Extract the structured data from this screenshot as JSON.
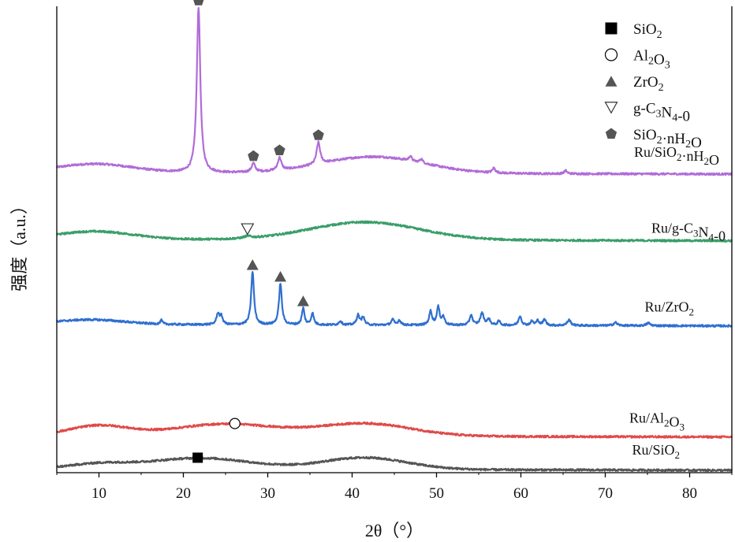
{
  "chart_data": {
    "type": "line",
    "title": "",
    "xlabel": "2θ（°）",
    "ylabel": "强度（a.u.）",
    "xlim": [
      5,
      85
    ],
    "xticks": [
      10,
      20,
      30,
      40,
      50,
      60,
      70,
      80
    ],
    "y_units": "arbitrary (stacked, offset traces)",
    "series": [
      {
        "name": "Ru/SiO2·nH2O",
        "label_html": "Ru/SiO<tspan class='sub'>2</tspan>·nH<tspan class='sub'>2</tspan>O",
        "label_parts": [
          [
            "Ru/SiO",
            ""
          ],
          [
            "2",
            "sub"
          ],
          [
            "·nH",
            ""
          ],
          [
            "2",
            "sub"
          ],
          [
            "O",
            ""
          ]
        ],
        "color": "#b16cd8",
        "offset": 4.0,
        "peaks": [
          {
            "x": 21.8,
            "h": 4.2,
            "w": 0.25,
            "marker": "pentagon"
          },
          {
            "x": 28.3,
            "h": 0.22,
            "w": 0.25,
            "marker": "pentagon"
          },
          {
            "x": 31.4,
            "h": 0.32,
            "w": 0.25,
            "marker": "pentagon"
          },
          {
            "x": 36.0,
            "h": 0.55,
            "w": 0.25,
            "marker": "pentagon"
          },
          {
            "x": 46.9,
            "h": 0.12,
            "w": 0.2
          },
          {
            "x": 48.2,
            "h": 0.1,
            "w": 0.2
          },
          {
            "x": 56.8,
            "h": 0.12,
            "w": 0.2
          },
          {
            "x": 65.3,
            "h": 0.08,
            "w": 0.2
          }
        ],
        "humps": [
          {
            "x": 9.5,
            "h": 0.22,
            "w": 4.5
          },
          {
            "x": 42.5,
            "h": 0.42,
            "w": 6.0
          }
        ]
      },
      {
        "name": "Ru/g-C3N4-0",
        "label_parts": [
          [
            "Ru/g-C",
            ""
          ],
          [
            "3",
            "sub"
          ],
          [
            "N",
            ""
          ],
          [
            "4",
            "sub"
          ],
          [
            "-0",
            ""
          ]
        ],
        "color": "#3a9e6a",
        "offset": 3.1,
        "peaks": [
          {
            "x": 27.6,
            "h": 0.05,
            "w": 0.5,
            "marker": "triangle-down"
          }
        ],
        "humps": [
          {
            "x": 9.5,
            "h": 0.2,
            "w": 4.5
          },
          {
            "x": 41.5,
            "h": 0.45,
            "w": 6.5
          }
        ]
      },
      {
        "name": "Ru/ZrO2",
        "label_parts": [
          [
            "Ru/ZrO",
            ""
          ],
          [
            "2",
            "sub"
          ]
        ],
        "color": "#2f6fd0",
        "offset": 1.95,
        "peaks": [
          {
            "x": 17.4,
            "h": 0.1,
            "w": 0.15
          },
          {
            "x": 24.1,
            "h": 0.28,
            "w": 0.2
          },
          {
            "x": 24.5,
            "h": 0.2,
            "w": 0.2
          },
          {
            "x": 28.2,
            "h": 1.35,
            "w": 0.2,
            "marker": "triangle-up"
          },
          {
            "x": 31.5,
            "h": 1.05,
            "w": 0.2,
            "marker": "triangle-up"
          },
          {
            "x": 34.2,
            "h": 0.42,
            "w": 0.18,
            "marker": "triangle-up"
          },
          {
            "x": 35.3,
            "h": 0.3,
            "w": 0.18
          },
          {
            "x": 38.6,
            "h": 0.1,
            "w": 0.2
          },
          {
            "x": 40.7,
            "h": 0.25,
            "w": 0.2
          },
          {
            "x": 41.3,
            "h": 0.2,
            "w": 0.2
          },
          {
            "x": 44.8,
            "h": 0.14,
            "w": 0.2
          },
          {
            "x": 45.6,
            "h": 0.12,
            "w": 0.2
          },
          {
            "x": 49.3,
            "h": 0.35,
            "w": 0.2
          },
          {
            "x": 50.2,
            "h": 0.45,
            "w": 0.2
          },
          {
            "x": 50.8,
            "h": 0.2,
            "w": 0.2
          },
          {
            "x": 54.1,
            "h": 0.26,
            "w": 0.2
          },
          {
            "x": 55.4,
            "h": 0.3,
            "w": 0.25
          },
          {
            "x": 56.2,
            "h": 0.15,
            "w": 0.2
          },
          {
            "x": 57.4,
            "h": 0.1,
            "w": 0.2
          },
          {
            "x": 59.9,
            "h": 0.24,
            "w": 0.2
          },
          {
            "x": 61.3,
            "h": 0.1,
            "w": 0.2
          },
          {
            "x": 62.0,
            "h": 0.12,
            "w": 0.2
          },
          {
            "x": 62.8,
            "h": 0.15,
            "w": 0.2
          },
          {
            "x": 65.7,
            "h": 0.14,
            "w": 0.25
          },
          {
            "x": 71.2,
            "h": 0.08,
            "w": 0.25
          },
          {
            "x": 75.1,
            "h": 0.07,
            "w": 0.25
          }
        ],
        "humps": [
          {
            "x": 9.0,
            "h": 0.12,
            "w": 4.0
          }
        ]
      },
      {
        "name": "Ru/Al2O3",
        "label_parts": [
          [
            "Ru/Al",
            ""
          ],
          [
            "2",
            "sub"
          ],
          [
            "O",
            ""
          ],
          [
            "3",
            "sub"
          ]
        ],
        "color": "#e04a4a",
        "offset": 0.45,
        "peaks": [],
        "humps": [
          {
            "x": 10.0,
            "h": 0.25,
            "w": 3.5
          },
          {
            "x": 25.0,
            "h": 0.3,
            "w": 6.0,
            "marker": "circle",
            "marker_x": 26.1
          },
          {
            "x": 41.5,
            "h": 0.32,
            "w": 5.5
          }
        ]
      },
      {
        "name": "Ru/SiO2",
        "label_parts": [
          [
            "Ru/SiO",
            ""
          ],
          [
            "2",
            "sub"
          ]
        ],
        "color": "#555555",
        "offset": 0.0,
        "peaks": [],
        "humps": [
          {
            "x": 10.0,
            "h": 0.12,
            "w": 3.5
          },
          {
            "x": 22.0,
            "h": 0.28,
            "w": 6.0,
            "marker": "square",
            "marker_x": 21.7
          },
          {
            "x": 41.5,
            "h": 0.3,
            "w": 5.0
          }
        ]
      }
    ],
    "legend": {
      "placement": "top-right",
      "entries": [
        {
          "marker": "square",
          "parts": [
            [
              "SiO",
              ""
            ],
            [
              "2",
              "sub"
            ]
          ]
        },
        {
          "marker": "circle",
          "parts": [
            [
              "Al",
              ""
            ],
            [
              "2",
              "sub"
            ],
            [
              "O",
              ""
            ],
            [
              "3",
              "sub"
            ]
          ]
        },
        {
          "marker": "triangle-up",
          "parts": [
            [
              "ZrO",
              ""
            ],
            [
              "2",
              "sub"
            ]
          ]
        },
        {
          "marker": "triangle-down",
          "parts": [
            [
              "g-C",
              ""
            ],
            [
              "3",
              "sub"
            ],
            [
              "N",
              ""
            ],
            [
              "4",
              "sub"
            ],
            [
              "-0",
              ""
            ]
          ]
        },
        {
          "marker": "pentagon",
          "parts": [
            [
              "SiO",
              ""
            ],
            [
              "2",
              "sub"
            ],
            [
              "·nH",
              ""
            ],
            [
              "2",
              "sub"
            ],
            [
              "O",
              ""
            ]
          ]
        }
      ]
    }
  }
}
